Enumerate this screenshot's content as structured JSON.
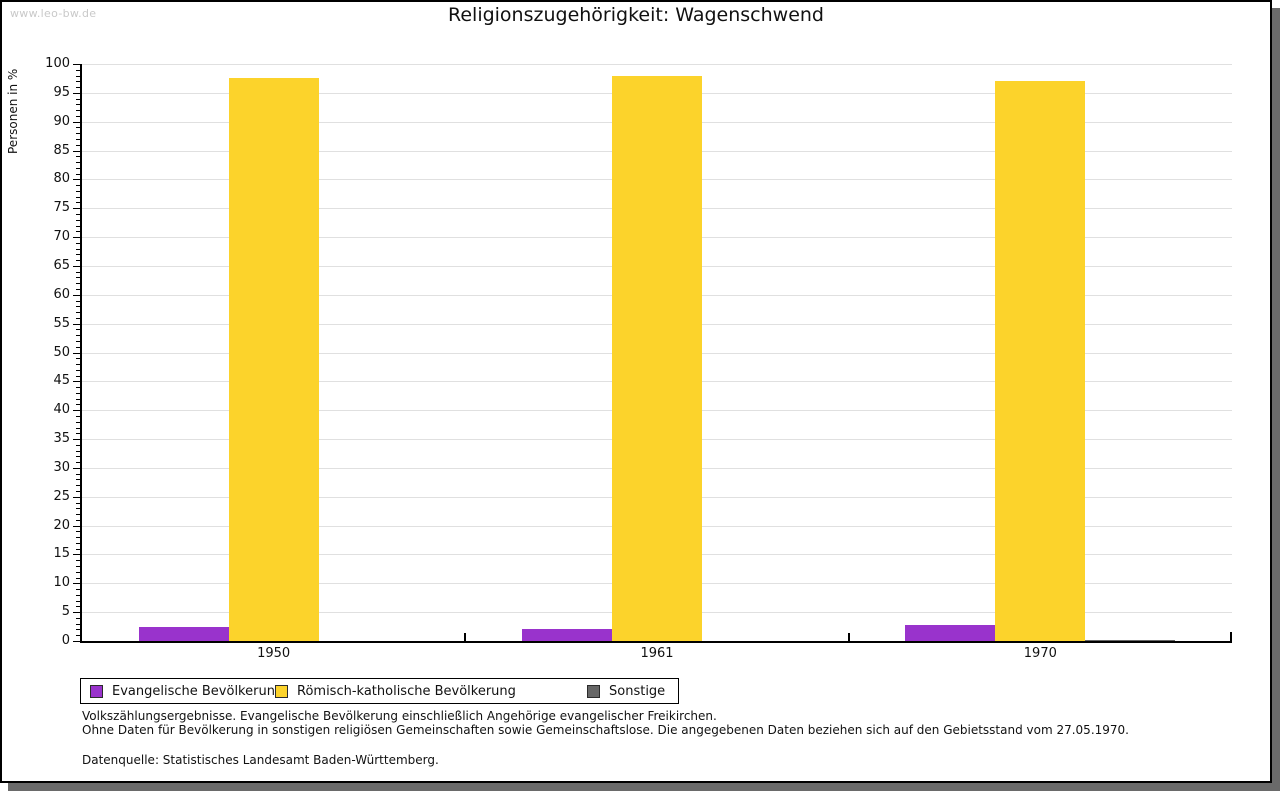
{
  "page": {
    "watermark": "www.leo-bw.de"
  },
  "chart_data": {
    "type": "bar",
    "title": "Religionszugehörigkeit: Wagenschwend",
    "ylabel": "Personen in %",
    "xlabel": "",
    "ylim": [
      0,
      100
    ],
    "y_major_step": 5,
    "y_minor_step": 1,
    "grid": true,
    "legend_position": "bottom-left",
    "categories": [
      "1950",
      "1961",
      "1970"
    ],
    "series": [
      {
        "name": "Evangelische Bevölkerung",
        "color": "#9933cc",
        "values": [
          2.5,
          2.1,
          2.7
        ]
      },
      {
        "name": "Römisch-katholische Bevölkerung",
        "color": "#fcd32b",
        "values": [
          97.5,
          97.9,
          97.1
        ]
      },
      {
        "name": "Sonstige",
        "color": "#666666",
        "values": [
          0,
          0,
          0.2
        ]
      }
    ]
  },
  "footnotes": {
    "line1": "Volkszählungsergebnisse. Evangelische Bevölkerung einschließlich Angehörige evangelischer Freikirchen.",
    "line2": "Ohne Daten für Bevölkerung in sonstigen religiösen Gemeinschaften sowie Gemeinschaftslose. Die angegebenen Daten beziehen sich auf den Gebietsstand vom 27.05.1970.",
    "source": "Datenquelle: Statistisches Landesamt Baden-Württemberg."
  },
  "colors": {
    "grid": "#e0e0e0",
    "axis": "#000000",
    "watermark": "#c9c9c9",
    "frame_shadow": "#6a6a6a"
  }
}
